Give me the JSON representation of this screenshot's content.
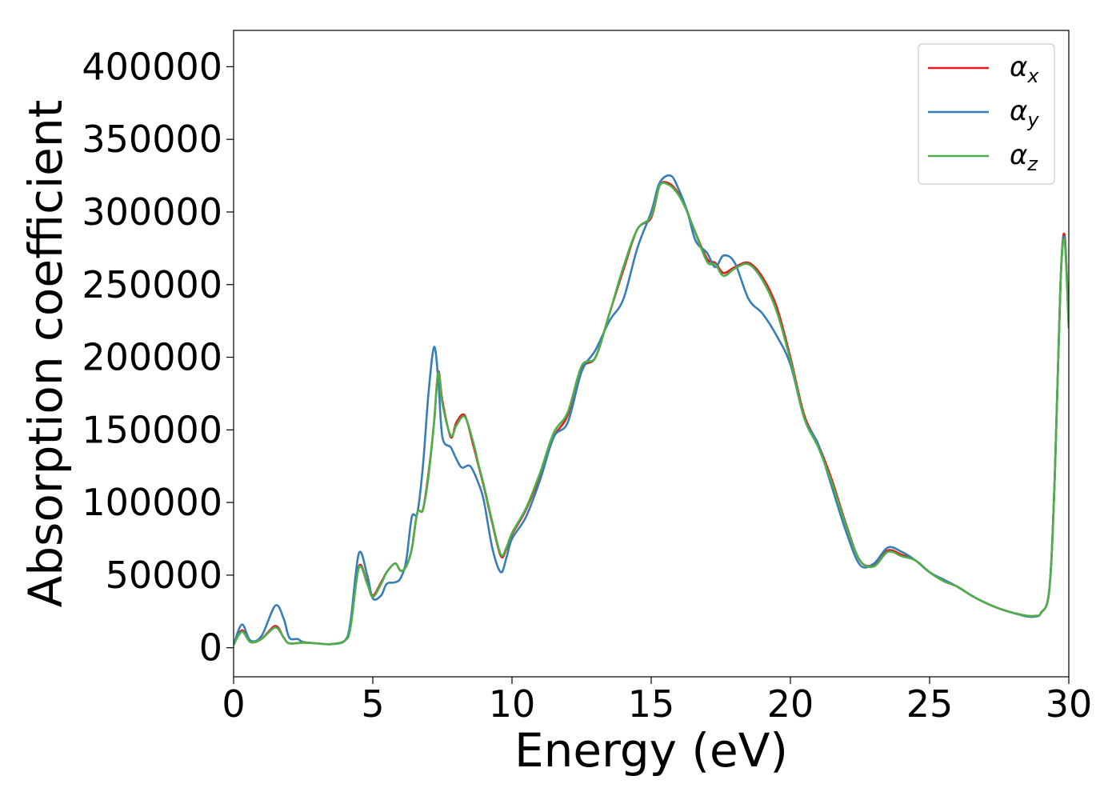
{
  "chart_data": {
    "type": "line",
    "title": "",
    "xlabel": "Energy (eV)",
    "ylabel": "Absorption coefficient",
    "xlim": [
      0,
      30
    ],
    "ylim": [
      -20000,
      425000
    ],
    "x_ticks": [
      0,
      5,
      10,
      15,
      20,
      25,
      30
    ],
    "y_ticks": [
      0,
      50000,
      100000,
      150000,
      200000,
      250000,
      300000,
      350000,
      400000
    ],
    "x_tick_labels": [
      "0",
      "5",
      "10",
      "15",
      "20",
      "25",
      "30"
    ],
    "y_tick_labels": [
      "0",
      "50000",
      "100000",
      "150000",
      "200000",
      "250000",
      "300000",
      "350000",
      "400000"
    ],
    "grid": false,
    "legend_position": "top-right",
    "series": [
      {
        "name": "αx",
        "symbol": "α",
        "subscript": "x",
        "color": "#e41a1c",
        "x": [
          0,
          0.3,
          0.6,
          1.0,
          1.5,
          1.8,
          2.0,
          2.5,
          3.0,
          3.5,
          4.0,
          4.2,
          4.5,
          4.8,
          5.0,
          5.3,
          5.5,
          5.8,
          6.0,
          6.2,
          6.4,
          6.6,
          6.8,
          7.0,
          7.2,
          7.35,
          7.5,
          7.8,
          8.0,
          8.3,
          8.6,
          8.8,
          9.0,
          9.3,
          9.6,
          9.8,
          10.0,
          10.5,
          11.0,
          11.5,
          12.0,
          12.5,
          13.0,
          13.5,
          14.0,
          14.5,
          15.0,
          15.3,
          15.6,
          15.9,
          16.2,
          16.5,
          17.0,
          17.3,
          17.6,
          18.0,
          18.5,
          19.0,
          19.5,
          20.0,
          20.5,
          21.0,
          21.5,
          22.0,
          22.5,
          23.0,
          23.5,
          24.0,
          24.5,
          25.0,
          25.5,
          26.0,
          26.5,
          27.0,
          27.5,
          28.0,
          28.5,
          28.8,
          29.0,
          29.3,
          29.5,
          29.7,
          29.85,
          30.0
        ],
        "y": [
          2000,
          12000,
          4000,
          6000,
          15000,
          7000,
          3000,
          3500,
          3000,
          2500,
          5000,
          15000,
          56000,
          45000,
          36000,
          45000,
          52000,
          58000,
          53000,
          56000,
          68000,
          93000,
          95000,
          120000,
          155000,
          190000,
          170000,
          145000,
          155000,
          160000,
          140000,
          125000,
          110000,
          85000,
          63000,
          68000,
          78000,
          95000,
          118000,
          145000,
          160000,
          192000,
          200000,
          230000,
          260000,
          288000,
          296000,
          318000,
          320000,
          315000,
          305000,
          290000,
          268000,
          265000,
          258000,
          262000,
          265000,
          255000,
          235000,
          200000,
          160000,
          140000,
          115000,
          85000,
          60000,
          57000,
          67000,
          64000,
          60000,
          52000,
          46000,
          42000,
          36000,
          31000,
          27000,
          24000,
          22000,
          22000,
          24000,
          40000,
          120000,
          250000,
          284000,
          220000
        ]
      },
      {
        "name": "αy",
        "symbol": "α",
        "subscript": "y",
        "color": "#377eb8",
        "x": [
          0,
          0.3,
          0.6,
          1.0,
          1.5,
          1.8,
          2.0,
          2.3,
          2.5,
          3.0,
          3.5,
          4.0,
          4.2,
          4.5,
          4.8,
          5.0,
          5.3,
          5.5,
          5.8,
          6.0,
          6.2,
          6.4,
          6.6,
          6.8,
          7.0,
          7.2,
          7.35,
          7.5,
          7.8,
          8.0,
          8.2,
          8.5,
          8.8,
          9.0,
          9.3,
          9.6,
          9.8,
          10.0,
          10.5,
          11.0,
          11.5,
          12.0,
          12.5,
          13.0,
          13.5,
          14.0,
          14.5,
          15.0,
          15.3,
          15.7,
          16.0,
          16.3,
          16.6,
          17.0,
          17.3,
          17.6,
          18.0,
          18.5,
          19.0,
          19.5,
          20.0,
          20.5,
          21.0,
          21.5,
          22.0,
          22.5,
          23.0,
          23.5,
          24.0,
          24.5,
          25.0,
          25.5,
          26.0,
          26.5,
          27.0,
          27.5,
          28.0,
          28.5,
          28.8,
          29.0,
          29.3,
          29.5,
          29.7,
          29.85,
          30.0
        ],
        "y": [
          2000,
          16000,
          5000,
          8000,
          29000,
          20000,
          7000,
          6000,
          4000,
          3000,
          2500,
          5000,
          18000,
          65000,
          50000,
          34000,
          36000,
          44000,
          45000,
          48000,
          60000,
          90000,
          93000,
          125000,
          175000,
          207000,
          185000,
          145000,
          138000,
          130000,
          124000,
          125000,
          113000,
          100000,
          68000,
          52000,
          62000,
          75000,
          90000,
          115000,
          145000,
          155000,
          190000,
          205000,
          225000,
          240000,
          275000,
          300000,
          320000,
          325000,
          315000,
          300000,
          280000,
          272000,
          262000,
          270000,
          265000,
          240000,
          230000,
          215000,
          195000,
          158000,
          140000,
          110000,
          80000,
          57000,
          58000,
          69000,
          66000,
          60000,
          52000,
          47000,
          42000,
          36000,
          31000,
          27000,
          24000,
          21500,
          21500,
          24000,
          40000,
          120000,
          250000,
          282000,
          220000
        ]
      },
      {
        "name": "αz",
        "symbol": "α",
        "subscript": "z",
        "color": "#4daf4a",
        "x": [
          0,
          0.3,
          0.6,
          1.0,
          1.5,
          1.8,
          2.0,
          2.5,
          3.0,
          3.5,
          4.0,
          4.2,
          4.5,
          4.8,
          5.0,
          5.3,
          5.5,
          5.8,
          6.0,
          6.2,
          6.4,
          6.6,
          6.8,
          7.0,
          7.2,
          7.35,
          7.5,
          7.8,
          8.0,
          8.3,
          8.6,
          8.8,
          9.0,
          9.3,
          9.6,
          9.8,
          10.0,
          10.5,
          11.0,
          11.5,
          12.0,
          12.5,
          13.0,
          13.5,
          14.0,
          14.5,
          15.0,
          15.3,
          15.6,
          15.9,
          16.2,
          16.5,
          17.0,
          17.3,
          17.6,
          18.0,
          18.5,
          19.0,
          19.5,
          20.0,
          20.5,
          21.0,
          21.5,
          22.0,
          22.5,
          23.0,
          23.5,
          24.0,
          24.5,
          25.0,
          25.5,
          26.0,
          26.5,
          27.0,
          27.5,
          28.0,
          28.5,
          28.8,
          29.0,
          29.3,
          29.5,
          29.7,
          29.85,
          30.0
        ],
        "y": [
          2000,
          11000,
          4000,
          6000,
          14000,
          7000,
          3000,
          3500,
          3000,
          2500,
          5000,
          14000,
          55000,
          44000,
          35000,
          44000,
          52000,
          58000,
          53000,
          56000,
          68000,
          93000,
          95000,
          118000,
          155000,
          189000,
          168000,
          146000,
          153000,
          159000,
          142000,
          126000,
          111000,
          86000,
          64000,
          69000,
          79000,
          96000,
          120000,
          148000,
          162000,
          194000,
          200000,
          230000,
          262000,
          288000,
          297000,
          318000,
          319000,
          314000,
          304000,
          290000,
          266000,
          264000,
          256000,
          261000,
          264000,
          253000,
          232000,
          198000,
          158000,
          138000,
          113000,
          84000,
          60000,
          56000,
          66000,
          63000,
          60000,
          52000,
          46000,
          42000,
          36000,
          31000,
          27000,
          24000,
          22000,
          22000,
          24000,
          40000,
          120000,
          250000,
          280000,
          220000
        ]
      }
    ]
  }
}
